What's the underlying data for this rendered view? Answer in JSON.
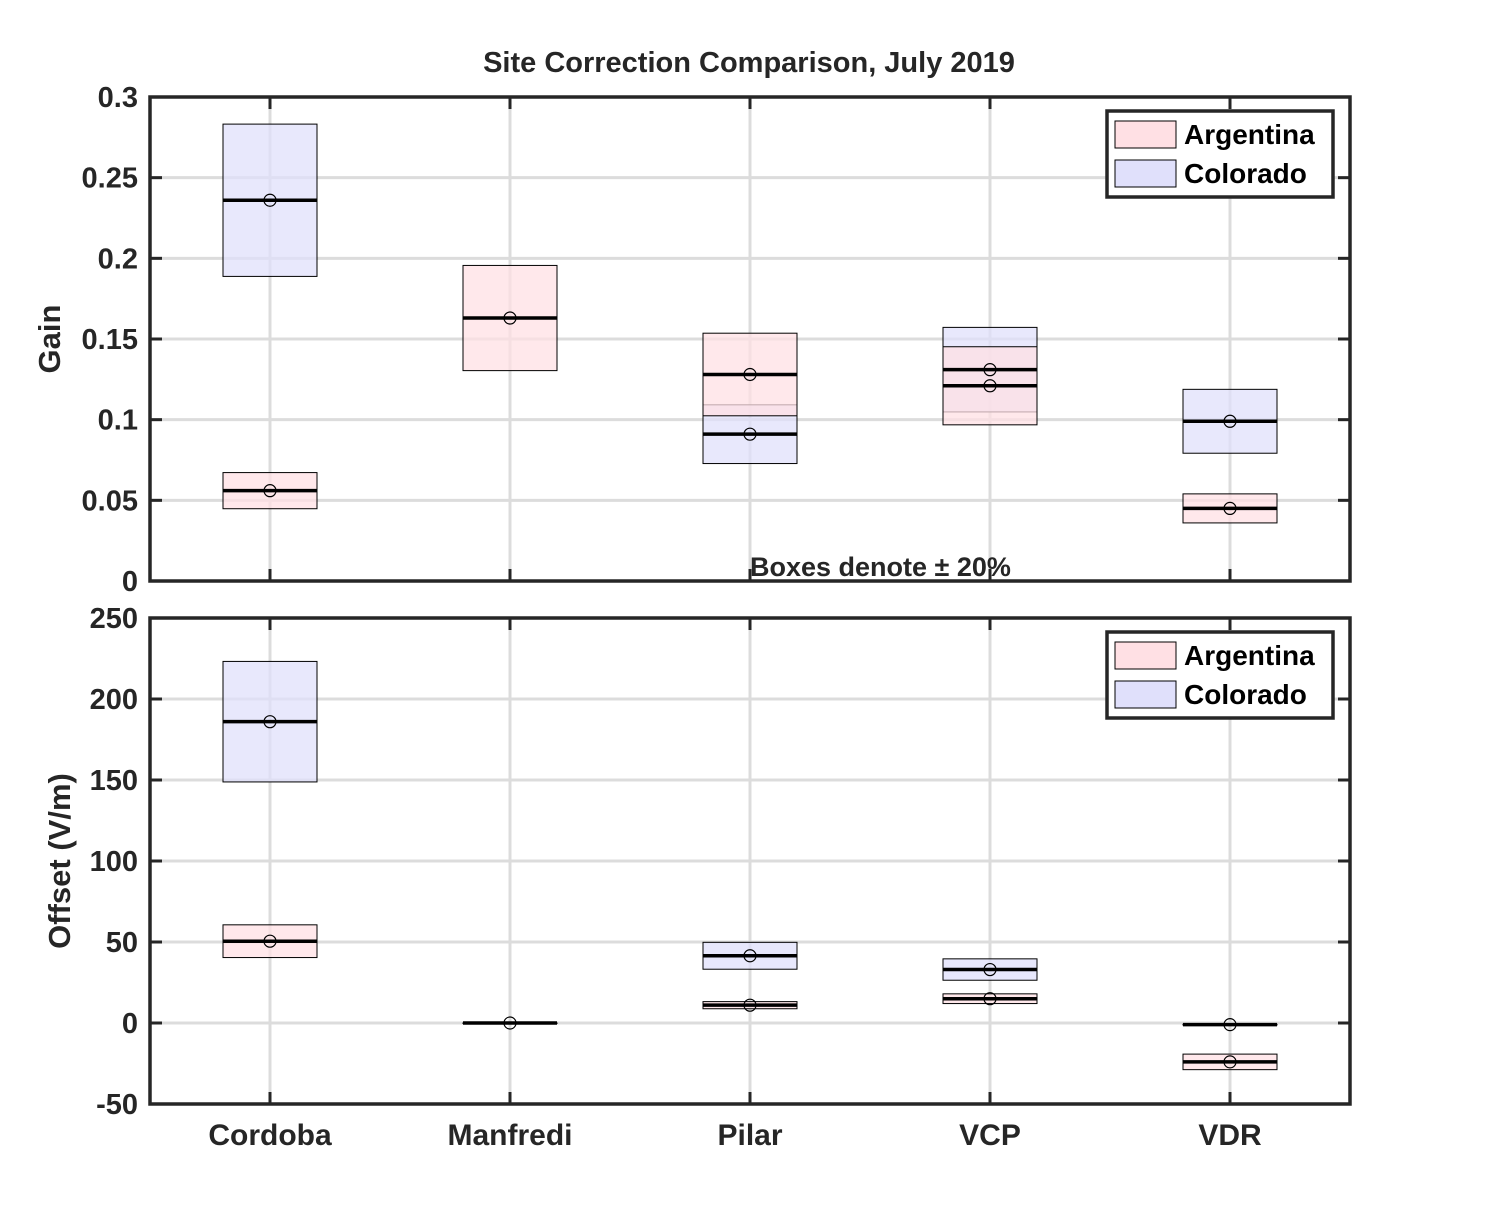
{
  "chart_data": {
    "type": "box",
    "title": "Site Correction Comparison, July 2019",
    "annotation": "Boxes denote ± 20%",
    "categories": [
      "Cordoba",
      "Manfredi",
      "Pilar",
      "VCP",
      "VDR"
    ],
    "colors": {
      "Argentina": "#ffe0e4",
      "Colorado": "#e0e0fb",
      "axis": "#262626",
      "grid": "#dcdcdc"
    },
    "panels": [
      {
        "ylabel": "Gain",
        "ylim": [
          0,
          0.3
        ],
        "yticks": [
          0,
          0.05,
          0.1,
          0.15,
          0.2,
          0.25,
          0.3
        ],
        "ytick_labels": [
          "0",
          "0.05",
          "0.1",
          "0.15",
          "0.2",
          "0.25",
          "0.3"
        ],
        "grid": true,
        "legend_position": "top-right",
        "series": [
          {
            "name": "Argentina",
            "values": [
              0.056,
              0.163,
              0.128,
              0.121,
              0.045
            ]
          },
          {
            "name": "Colorado",
            "values": [
              0.236,
              null,
              0.091,
              0.131,
              0.099
            ]
          }
        ]
      },
      {
        "ylabel": "Offset (V/m)",
        "ylim": [
          -50,
          250
        ],
        "yticks": [
          -50,
          0,
          50,
          100,
          150,
          200,
          250
        ],
        "ytick_labels": [
          "-50",
          "0",
          "50",
          "100",
          "150",
          "200",
          "250"
        ],
        "grid": true,
        "legend_position": "top-right",
        "series": [
          {
            "name": "Argentina",
            "values": [
              50.5,
              0,
              11,
              15,
              -24
            ]
          },
          {
            "name": "Colorado",
            "values": [
              186,
              null,
              41.5,
              33,
              -1
            ]
          }
        ]
      }
    ]
  }
}
